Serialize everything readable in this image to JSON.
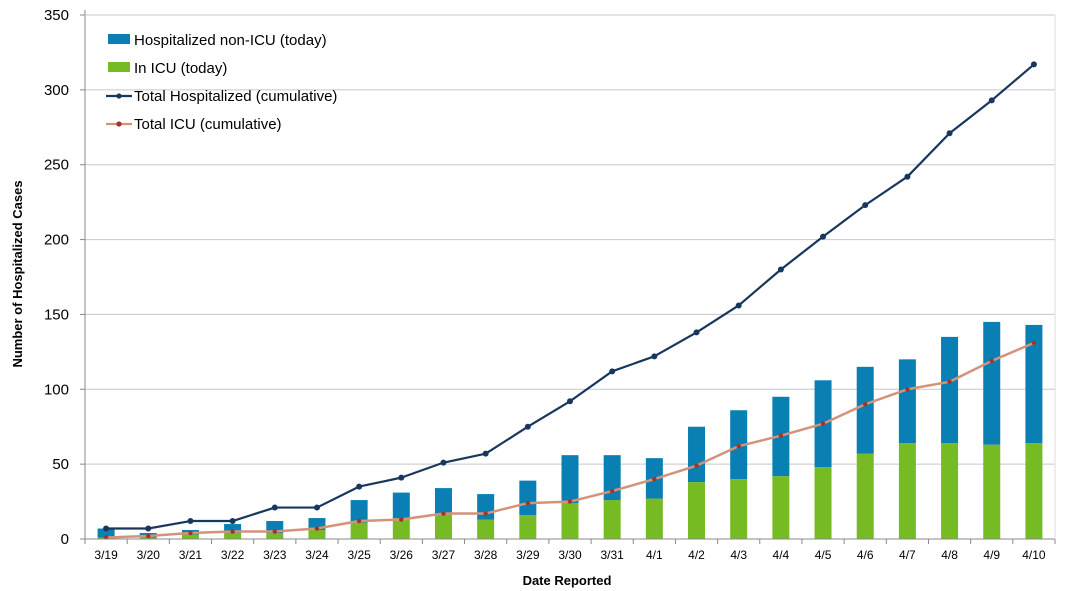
{
  "chart_data": {
    "type": "bar",
    "categories": [
      "3/19",
      "3/20",
      "3/21",
      "3/22",
      "3/23",
      "3/24",
      "3/25",
      "3/26",
      "3/27",
      "3/28",
      "3/29",
      "3/30",
      "3/31",
      "4/1",
      "4/2",
      "4/3",
      "4/4",
      "4/5",
      "4/6",
      "4/7",
      "4/8",
      "4/9",
      "4/10"
    ],
    "series": [
      {
        "name": "Hospitalized non-ICU (today)",
        "kind": "stacked-bar",
        "color": "#0a7fb3",
        "values": [
          6,
          3,
          3,
          6,
          8,
          8,
          15,
          17,
          17,
          17,
          23,
          32,
          30,
          27,
          37,
          46,
          53,
          58,
          58,
          56,
          71,
          82,
          79
        ]
      },
      {
        "name": "In ICU (today)",
        "kind": "stacked-bar",
        "color": "#77bb24",
        "values": [
          1,
          1,
          3,
          4,
          4,
          6,
          11,
          14,
          17,
          13,
          16,
          24,
          26,
          27,
          38,
          40,
          42,
          48,
          57,
          64,
          64,
          63,
          64
        ]
      },
      {
        "name": "Total Hospitalized (cumulative)",
        "kind": "line",
        "color": "#17375e",
        "values": [
          7,
          7,
          12,
          12,
          21,
          21,
          35,
          41,
          51,
          57,
          75,
          92,
          112,
          122,
          138,
          156,
          180,
          202,
          223,
          242,
          271,
          293,
          317
        ]
      },
      {
        "name": "Total ICU (cumulative)",
        "kind": "line",
        "color": "#d4927a",
        "marker_color": "#a0342a",
        "values": [
          1,
          2,
          4,
          5,
          5,
          7,
          12,
          13,
          17,
          17,
          24,
          25,
          32,
          40,
          49,
          62,
          69,
          77,
          90,
          100,
          105,
          119,
          131
        ]
      }
    ],
    "title": "",
    "xlabel": "Date Reported",
    "ylabel": "Number of Hospitalized  Cases",
    "ylim": [
      0,
      350
    ],
    "yticks": [
      0,
      50,
      100,
      150,
      200,
      250,
      300,
      350
    ],
    "grid": true,
    "legend_position": "top-left"
  }
}
